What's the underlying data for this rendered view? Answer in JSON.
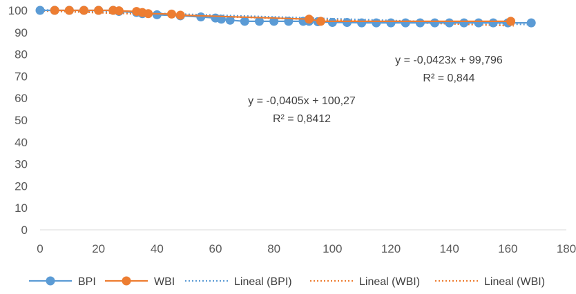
{
  "chart_data": {
    "type": "scatter",
    "xlim": [
      0,
      180
    ],
    "ylim": [
      0,
      100
    ],
    "x_ticks": [
      0,
      20,
      40,
      60,
      80,
      100,
      120,
      140,
      160,
      180
    ],
    "y_ticks": [
      0,
      10,
      20,
      30,
      40,
      50,
      60,
      70,
      80,
      90,
      100
    ],
    "grid": false,
    "legend": "bottom",
    "series": [
      {
        "name": "BPI",
        "color": "#5B9BD5",
        "style": "markers+line",
        "x": [
          0,
          5,
          10,
          15,
          20,
          25,
          27,
          33,
          35,
          40,
          48,
          55,
          60,
          62,
          65,
          70,
          75,
          80,
          85,
          90,
          92,
          95,
          100,
          105,
          110,
          115,
          120,
          125,
          130,
          135,
          140,
          145,
          150,
          155,
          160,
          168
        ],
        "y": [
          100,
          100,
          100,
          100,
          100,
          100,
          99.5,
          99,
          98.5,
          98,
          97.5,
          97,
          96.5,
          96,
          95.5,
          95,
          95,
          95,
          95,
          95,
          95,
          94.8,
          94.5,
          94.5,
          94.3,
          94.3,
          94.3,
          94.3,
          94.3,
          94.3,
          94.3,
          94.3,
          94.3,
          94.3,
          94.3,
          94.3
        ]
      },
      {
        "name": "WBI",
        "color": "#ED7D31",
        "style": "markers+line",
        "x": [
          5,
          10,
          15,
          20,
          25,
          27,
          33,
          35,
          37,
          45,
          48,
          92,
          96,
          161
        ],
        "y": [
          100,
          100,
          100,
          100,
          100,
          99.8,
          99.5,
          99,
          98.5,
          98.3,
          97.8,
          96,
          95,
          95
        ]
      }
    ],
    "trendlines": [
      {
        "name": "Lineal (BPI)",
        "color": "#5B9BD5",
        "slope": -0.0405,
        "intercept": 100.27,
        "x_range": [
          0,
          170
        ],
        "equation": "y = -0,0405x + 100,27",
        "r2": "R² = 0,8412"
      },
      {
        "name": "Lineal (WBI)",
        "color": "#ED7D31",
        "slope": -0.0423,
        "intercept": 99.796,
        "x_range": [
          0,
          162
        ],
        "equation": "y = -0,0423x + 99,796",
        "r2": "R² = 0,844"
      },
      {
        "name": "Lineal (WBI)",
        "color": "#ED7D31",
        "slope": -0.0423,
        "intercept": 99.796,
        "x_range": [
          0,
          162
        ]
      }
    ],
    "legend_entries": [
      "BPI",
      "WBI",
      "Lineal (BPI)",
      "Lineal (WBI)",
      "Lineal (WBI)"
    ]
  }
}
